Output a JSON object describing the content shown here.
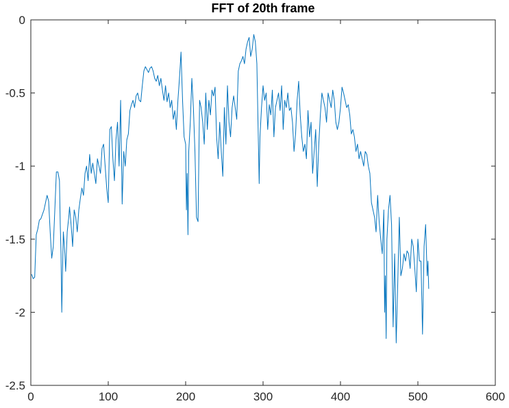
{
  "chart_data": {
    "type": "line",
    "title": "FFT of 20th frame",
    "color": "#0072bd",
    "xlim": [
      0,
      600
    ],
    "xticks": [
      0,
      100,
      200,
      300,
      400,
      500,
      600
    ],
    "ylim": [
      -2.5,
      0
    ],
    "yticks": [
      -2.5,
      -2,
      -1.5,
      -1,
      -0.5,
      0
    ],
    "x": [
      1,
      3,
      5,
      7,
      9,
      11,
      13,
      15,
      17,
      19,
      21,
      23,
      25,
      27,
      29,
      31,
      33,
      35,
      37,
      38,
      39,
      40,
      41,
      42,
      44,
      45,
      47,
      49,
      50,
      52,
      54,
      56,
      58,
      60,
      62,
      64,
      66,
      68,
      70,
      72,
      74,
      76,
      78,
      80,
      82,
      84,
      86,
      88,
      90,
      92,
      94,
      96,
      98,
      100,
      102,
      104,
      106,
      108,
      110,
      112,
      114,
      116,
      118,
      120,
      122,
      124,
      126,
      128,
      130,
      132,
      134,
      136,
      138,
      140,
      142,
      144,
      146,
      148,
      150,
      152,
      154,
      156,
      158,
      160,
      162,
      164,
      166,
      168,
      170,
      172,
      174,
      176,
      178,
      180,
      182,
      184,
      186,
      188,
      190,
      192,
      194,
      196,
      198,
      200,
      201,
      202,
      203,
      204,
      206,
      208,
      210,
      212,
      214,
      216,
      218,
      220,
      222,
      224,
      226,
      228,
      230,
      232,
      234,
      236,
      238,
      240,
      242,
      244,
      246,
      248,
      250,
      252,
      254,
      256,
      258,
      260,
      262,
      264,
      266,
      268,
      270,
      272,
      274,
      276,
      278,
      280,
      282,
      284,
      286,
      288,
      290,
      292,
      294,
      295,
      296,
      298,
      300,
      302,
      304,
      306,
      308,
      310,
      312,
      314,
      316,
      318,
      320,
      322,
      324,
      326,
      328,
      330,
      332,
      334,
      336,
      338,
      340,
      342,
      344,
      346,
      348,
      350,
      352,
      354,
      356,
      358,
      360,
      362,
      364,
      366,
      368,
      370,
      372,
      374,
      376,
      378,
      380,
      382,
      384,
      386,
      388,
      390,
      392,
      394,
      396,
      398,
      400,
      402,
      404,
      406,
      408,
      410,
      412,
      414,
      416,
      418,
      420,
      422,
      424,
      426,
      428,
      430,
      432,
      434,
      436,
      438,
      440,
      442,
      444,
      446,
      448,
      450,
      452,
      454,
      456,
      457,
      458,
      459,
      460,
      462,
      464,
      466,
      468,
      470,
      472,
      474,
      476,
      478,
      480,
      482,
      484,
      486,
      488,
      490,
      492,
      494,
      496,
      498,
      500,
      502,
      504,
      506,
      508,
      510,
      512,
      513,
      514
    ],
    "values": [
      -1.74,
      -1.77,
      -1.76,
      -1.47,
      -1.43,
      -1.37,
      -1.36,
      -1.33,
      -1.3,
      -1.25,
      -1.2,
      -1.24,
      -1.45,
      -1.63,
      -1.55,
      -1.3,
      -1.04,
      -1.04,
      -1.1,
      -1.4,
      -1.6,
      -2.0,
      -1.7,
      -1.45,
      -1.6,
      -1.72,
      -1.45,
      -1.35,
      -1.28,
      -1.4,
      -1.55,
      -1.3,
      -1.35,
      -1.45,
      -1.3,
      -1.22,
      -1.15,
      -1.2,
      -1.05,
      -1.0,
      -1.1,
      -0.92,
      -1.05,
      -0.98,
      -1.05,
      -1.12,
      -0.95,
      -1.0,
      -1.05,
      -0.88,
      -0.85,
      -1.0,
      -1.15,
      -1.25,
      -0.75,
      -0.73,
      -0.95,
      -1.1,
      -0.82,
      -0.7,
      -1.0,
      -0.55,
      -1.26,
      -0.9,
      -1.0,
      -0.82,
      -0.78,
      -0.62,
      -0.58,
      -0.55,
      -0.6,
      -0.52,
      -0.5,
      -0.55,
      -0.56,
      -0.45,
      -0.35,
      -0.32,
      -0.34,
      -0.36,
      -0.33,
      -0.32,
      -0.35,
      -0.4,
      -0.42,
      -0.38,
      -0.45,
      -0.4,
      -0.48,
      -0.55,
      -0.45,
      -0.56,
      -0.5,
      -0.6,
      -0.55,
      -0.68,
      -0.62,
      -0.75,
      -0.55,
      -0.4,
      -0.22,
      -0.55,
      -0.8,
      -0.85,
      -1.3,
      -1.05,
      -1.47,
      -0.9,
      -0.7,
      -0.4,
      -0.6,
      -0.9,
      -1.35,
      -1.38,
      -0.55,
      -0.6,
      -0.7,
      -0.85,
      -0.5,
      -0.75,
      -0.55,
      -0.65,
      -0.48,
      -0.52,
      -0.46,
      -0.8,
      -0.95,
      -0.7,
      -0.9,
      -1.07,
      -0.6,
      -0.85,
      -0.45,
      -0.7,
      -0.8,
      -0.6,
      -0.52,
      -0.6,
      -0.68,
      -0.35,
      -0.3,
      -0.28,
      -0.25,
      -0.3,
      -0.2,
      -0.15,
      -0.12,
      -0.25,
      -0.2,
      -0.1,
      -0.15,
      -0.3,
      -0.85,
      -1.12,
      -0.8,
      -0.6,
      -0.45,
      -0.55,
      -0.5,
      -0.75,
      -0.58,
      -0.65,
      -0.48,
      -0.8,
      -0.6,
      -0.55,
      -0.5,
      -0.62,
      -0.45,
      -0.75,
      -0.55,
      -0.6,
      -0.5,
      -0.62,
      -0.6,
      -0.7,
      -0.9,
      -0.78,
      -0.55,
      -0.42,
      -0.65,
      -0.8,
      -0.9,
      -0.85,
      -0.95,
      -0.62,
      -0.8,
      -0.7,
      -1.05,
      -0.9,
      -0.75,
      -1.14,
      -0.85,
      -0.65,
      -0.5,
      -0.55,
      -0.6,
      -0.7,
      -0.5,
      -0.55,
      -0.6,
      -0.48,
      -0.55,
      -0.7,
      -0.75,
      -0.7,
      -0.6,
      -0.46,
      -0.5,
      -0.55,
      -0.6,
      -0.58,
      -0.65,
      -0.78,
      -0.75,
      -0.8,
      -0.9,
      -0.85,
      -0.95,
      -0.9,
      -0.95,
      -1.0,
      -0.9,
      -0.92,
      -1.0,
      -1.05,
      -1.25,
      -1.3,
      -1.35,
      -1.45,
      -1.2,
      -1.38,
      -1.5,
      -1.6,
      -1.3,
      -2.0,
      -1.75,
      -2.18,
      -1.5,
      -1.3,
      -1.2,
      -1.4,
      -2.1,
      -1.6,
      -2.21,
      -1.8,
      -1.35,
      -1.75,
      -1.7,
      -1.6,
      -1.65,
      -1.58,
      -1.6,
      -1.7,
      -1.5,
      -1.55,
      -1.7,
      -1.86,
      -1.5,
      -1.65,
      -1.65,
      -2.15,
      -1.55,
      -1.4,
      -1.75,
      -1.65,
      -1.84
    ]
  }
}
